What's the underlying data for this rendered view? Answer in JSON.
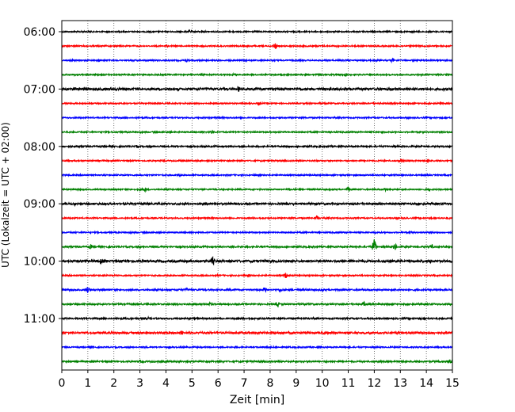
{
  "chart_data": {
    "type": "line",
    "title": "",
    "xlabel": "Zeit  [min]",
    "ylabel": "UTC (Lokalzeit = UTC + 02:00)",
    "xlim": [
      0,
      15
    ],
    "x_ticks": [
      "0",
      "1",
      "2",
      "3",
      "4",
      "5",
      "6",
      "7",
      "8",
      "9",
      "10",
      "11",
      "12",
      "13",
      "14",
      "15"
    ],
    "y_ticks": [
      "06:00",
      "07:00",
      "08:00",
      "09:00",
      "10:00",
      "11:00"
    ],
    "grid": "vertical dotted lines at each minute",
    "trace_interval_minutes": 15,
    "trace_colors": [
      "#000000",
      "#ff0000",
      "#0000ff",
      "#008000"
    ],
    "traces": [
      {
        "start": "06:00",
        "amplitude": 0.5,
        "events": [
          [
            4.9,
            1.2
          ],
          [
            14.6,
            0.9
          ]
        ]
      },
      {
        "start": "06:15",
        "amplitude": 0.5,
        "events": [
          [
            4.0,
            1.0
          ],
          [
            8.2,
            2.6
          ],
          [
            10.6,
            1.0
          ]
        ]
      },
      {
        "start": "06:30",
        "amplitude": 0.5,
        "events": [
          [
            4.8,
            1.1
          ],
          [
            12.7,
            1.6
          ],
          [
            14.0,
            0.8
          ]
        ]
      },
      {
        "start": "06:45",
        "amplitude": 0.5,
        "events": [
          [
            6.6,
            0.9
          ],
          [
            10.9,
            1.4
          ],
          [
            14.8,
            0.8
          ]
        ]
      },
      {
        "start": "07:00",
        "amplitude": 0.9,
        "events": [
          [
            0.5,
            1.5
          ],
          [
            6.8,
            2.4
          ],
          [
            14.9,
            0.9
          ]
        ]
      },
      {
        "start": "07:15",
        "amplitude": 0.5,
        "events": [
          [
            7.6,
            1.6
          ],
          [
            12.0,
            0.8
          ]
        ]
      },
      {
        "start": "07:30",
        "amplitude": 0.5,
        "events": [
          [
            13.4,
            0.8
          ]
        ]
      },
      {
        "start": "07:45",
        "amplitude": 0.5,
        "events": [
          [
            5.8,
            1.2
          ],
          [
            12.3,
            1.3
          ]
        ]
      },
      {
        "start": "08:00",
        "amplitude": 0.6,
        "events": [
          [
            2.9,
            1.2
          ],
          [
            7.0,
            1.0
          ]
        ]
      },
      {
        "start": "08:15",
        "amplitude": 0.5,
        "events": [
          [
            4.5,
            0.9
          ],
          [
            13.0,
            1.3
          ],
          [
            14.1,
            1.6
          ]
        ]
      },
      {
        "start": "08:30",
        "amplitude": 0.5,
        "events": [
          [
            4.5,
            1.2
          ],
          [
            12.7,
            0.8
          ]
        ]
      },
      {
        "start": "08:45",
        "amplitude": 0.5,
        "events": [
          [
            3.2,
            1.8
          ],
          [
            8.7,
            1.5
          ],
          [
            11.0,
            2.0
          ],
          [
            12.4,
            1.6
          ],
          [
            14.1,
            1.5
          ]
        ]
      },
      {
        "start": "09:00",
        "amplitude": 0.7,
        "events": [
          [
            0.5,
            1.4
          ],
          [
            6.4,
            1.0
          ],
          [
            9.8,
            0.9
          ]
        ]
      },
      {
        "start": "09:15",
        "amplitude": 0.5,
        "events": [
          [
            9.8,
            2.0
          ],
          [
            14.8,
            1.1
          ]
        ]
      },
      {
        "start": "09:30",
        "amplitude": 0.5,
        "events": [
          [
            12.0,
            1.0
          ],
          [
            13.4,
            1.0
          ]
        ]
      },
      {
        "start": "09:45",
        "amplitude": 0.6,
        "events": [
          [
            1.1,
            1.8
          ],
          [
            3.6,
            1.0
          ],
          [
            12.0,
            6.0
          ],
          [
            12.8,
            2.8
          ],
          [
            14.2,
            2.0
          ]
        ]
      },
      {
        "start": "10:00",
        "amplitude": 0.9,
        "events": [
          [
            1.5,
            2.2
          ],
          [
            5.8,
            3.5
          ],
          [
            11.0,
            1.2
          ],
          [
            14.2,
            2.0
          ]
        ]
      },
      {
        "start": "10:15",
        "amplitude": 0.5,
        "events": [
          [
            6.0,
            1.0
          ],
          [
            8.6,
            2.2
          ]
        ]
      },
      {
        "start": "10:30",
        "amplitude": 0.6,
        "events": [
          [
            1.0,
            2.6
          ],
          [
            4.8,
            1.4
          ],
          [
            7.8,
            2.2
          ],
          [
            8.4,
            1.6
          ],
          [
            10.0,
            1.5
          ]
        ]
      },
      {
        "start": "10:45",
        "amplitude": 0.6,
        "events": [
          [
            5.7,
            1.8
          ],
          [
            8.3,
            1.7
          ],
          [
            11.6,
            2.0
          ]
        ]
      },
      {
        "start": "11:00",
        "amplitude": 0.6,
        "events": [
          [
            3.3,
            1.2
          ],
          [
            13.7,
            1.0
          ]
        ]
      },
      {
        "start": "11:15",
        "amplitude": 0.8,
        "events": [
          [
            4.6,
            2.2
          ],
          [
            6.8,
            0.8
          ]
        ]
      },
      {
        "start": "11:30",
        "amplitude": 0.5,
        "events": [
          [
            1.2,
            1.0
          ],
          [
            6.7,
            1.2
          ]
        ]
      },
      {
        "start": "11:45",
        "amplitude": 0.6,
        "events": [
          [
            3.0,
            1.4
          ],
          [
            14.9,
            1.6
          ]
        ]
      }
    ]
  }
}
